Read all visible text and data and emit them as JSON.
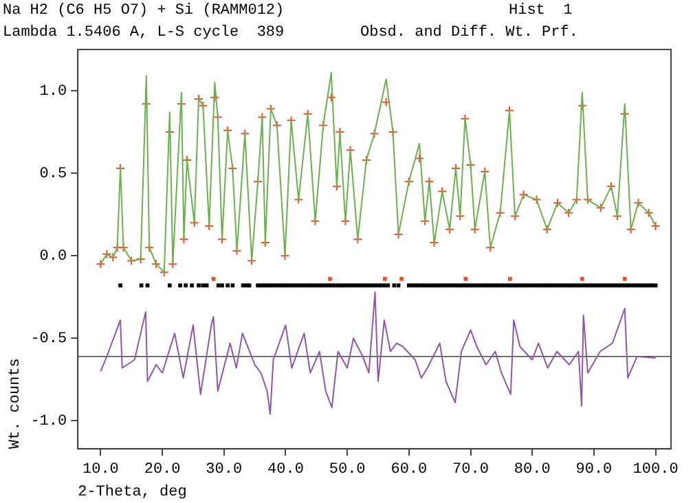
{
  "chart_data": {
    "type": "scatter",
    "title": "Na H2 (C6 H5 O7) + Si (RAMM012)",
    "annotations": [
      "Hist  1",
      "Lambda 1.5406 A, L-S cycle  389",
      "Obsd. and Diff. Wt. Prf."
    ],
    "xlabel": "2-Theta, deg",
    "ylabel": "Wt. counts",
    "xlim": [
      6.3,
      102.5
    ],
    "ylim": [
      -1.17,
      1.25
    ],
    "xticks": [
      {
        "value": 10,
        "label": "10.0"
      },
      {
        "value": 20,
        "label": "20.0"
      },
      {
        "value": 30,
        "label": "30.0"
      },
      {
        "value": 40,
        "label": "40.0"
      },
      {
        "value": 50,
        "label": "50.0"
      },
      {
        "value": 60,
        "label": "60.0"
      },
      {
        "value": 70,
        "label": "70.0"
      },
      {
        "value": 80,
        "label": "80.0"
      },
      {
        "value": 90,
        "label": "90.0"
      },
      {
        "value": 100,
        "label": "100.0"
      }
    ],
    "yticks": [
      {
        "value": -1,
        "label": "-1.0"
      },
      -0.5,
      {
        "value": 0,
        "label": "0.0"
      },
      0.5,
      {
        "value": 1,
        "label": "1.0"
      }
    ],
    "grid": false,
    "legend": false,
    "ref_lines": [
      {
        "axis": "y",
        "value": -0.61,
        "color": "#444444"
      }
    ],
    "series": [
      {
        "type": "line",
        "color": "#6ab04c",
        "marker": "none",
        "x": [
          10,
          11,
          12,
          12.7,
          13.2,
          13.7,
          15,
          16.5,
          17.4,
          17.9,
          19,
          20.3,
          21.2,
          21.7,
          23.1,
          23.5,
          24,
          25.2,
          25.9,
          26.6,
          27.6,
          28.5,
          29,
          29.7,
          30.6,
          31.4,
          32.1,
          33.4,
          34.5,
          35.5,
          36.2,
          36.7,
          37.6,
          38.6,
          39.9,
          40.9,
          42.1,
          43.6,
          44.8,
          46.1,
          47.4,
          48.3,
          48.8,
          49.7,
          50.5,
          51.7,
          53.1,
          54.4,
          56.3,
          57.4,
          58.3,
          60,
          61.7,
          62.6,
          63.3,
          64.1,
          65.4,
          66.6,
          67.6,
          68.3,
          69.1,
          70,
          70.7,
          72.3,
          73.2,
          74.8,
          76.3,
          77.2,
          78.6,
          80.7,
          82.4,
          84.1,
          85.9,
          87.2,
          88.1,
          89,
          91.1,
          92.8,
          93.8,
          95,
          96,
          97.2,
          98.9,
          100
        ],
        "values": [
          -0.05,
          0.01,
          -0.01,
          0.05,
          0.53,
          0.05,
          -0.03,
          -0.02,
          1.09,
          0.05,
          -0.05,
          -0.1,
          0.87,
          -0.05,
          0.99,
          0.1,
          0.58,
          0.2,
          0.95,
          0.91,
          0.18,
          1.05,
          0.84,
          0.1,
          0.76,
          0.53,
          0.03,
          0.74,
          -0.03,
          0.45,
          0.84,
          0.08,
          0.89,
          0.79,
          0,
          0.82,
          0.34,
          0.86,
          0.21,
          0.79,
          1.11,
          0.42,
          0.75,
          0.21,
          0.64,
          0.1,
          0.58,
          0.74,
          1.07,
          0.75,
          0.13,
          0.45,
          0.68,
          0.21,
          0.45,
          0.08,
          0.39,
          0.16,
          0.53,
          0.24,
          0.83,
          0.55,
          0.16,
          0.51,
          0.05,
          0.26,
          0.88,
          0.24,
          0.37,
          0.34,
          0.16,
          0.32,
          0.26,
          0.34,
          0.99,
          0.34,
          0.29,
          0.42,
          0.24,
          0.92,
          0.16,
          0.32,
          0.26,
          0.18
        ]
      },
      {
        "type": "scatter",
        "color": "#e8502a",
        "marker": "cross",
        "x": [
          10,
          11,
          12,
          12.7,
          13.2,
          13.7,
          15,
          16.5,
          17.4,
          17.9,
          19,
          20.3,
          21.2,
          21.7,
          23.1,
          23.5,
          24,
          25.2,
          25.9,
          26.6,
          27.6,
          28.5,
          29,
          29.7,
          30.6,
          31.4,
          32.1,
          33.4,
          34.5,
          35.5,
          36.2,
          36.7,
          37.6,
          38.6,
          39.9,
          40.9,
          42.1,
          43.6,
          44.8,
          46.1,
          47.4,
          48.3,
          48.8,
          49.7,
          50.5,
          51.7,
          53.1,
          54.4,
          56.3,
          57.4,
          58.3,
          60,
          61.7,
          62.6,
          63.3,
          64.1,
          65.4,
          66.6,
          67.6,
          68.3,
          69.1,
          70,
          70.7,
          72.3,
          73.2,
          74.8,
          76.3,
          77.2,
          78.6,
          80.7,
          82.4,
          84.1,
          85.9,
          87.2,
          88.1,
          89,
          91.1,
          92.8,
          93.8,
          95,
          96,
          97.2,
          98.9,
          100
        ],
        "values": [
          -0.05,
          0.01,
          -0.01,
          0.05,
          0.53,
          0.05,
          -0.03,
          -0.02,
          0.92,
          0.05,
          -0.05,
          -0.1,
          0.75,
          -0.05,
          0.92,
          0.1,
          0.58,
          0.2,
          0.95,
          0.91,
          0.18,
          0.96,
          0.84,
          0.1,
          0.76,
          0.53,
          0.03,
          0.74,
          -0.03,
          0.45,
          0.84,
          0.08,
          0.89,
          0.79,
          0,
          0.82,
          0.34,
          0.86,
          0.21,
          0.79,
          0.96,
          0.42,
          0.75,
          0.21,
          0.64,
          0.1,
          0.58,
          0.74,
          0.93,
          0.75,
          0.13,
          0.45,
          0.59,
          0.21,
          0.45,
          0.08,
          0.39,
          0.16,
          0.53,
          0.24,
          0.83,
          0.55,
          0.16,
          0.51,
          0.05,
          0.26,
          0.88,
          0.24,
          0.37,
          0.34,
          0.16,
          0.32,
          0.26,
          0.34,
          0.91,
          0.34,
          0.29,
          0.42,
          0.24,
          0.86,
          0.16,
          0.32,
          0.26,
          0.18
        ]
      },
      {
        "type": "scatter",
        "color": "#000000",
        "marker": "square",
        "x": [
          13.2,
          16.6,
          17.6,
          21.2,
          22.9,
          23.8,
          24.8,
          25.9,
          26.6,
          27.2,
          29.1,
          29.7,
          30.6,
          31.4,
          33.1,
          33.7,
          34.1,
          35.5,
          36,
          36.5,
          37,
          37.5,
          38,
          38.5,
          39,
          39.5,
          40,
          40.5,
          41,
          41.5,
          42,
          42.5,
          43,
          43.5,
          44,
          44.5,
          45,
          45.5,
          46,
          46.5,
          47,
          47.5,
          48,
          48.5,
          49,
          49.5,
          50,
          50.5,
          51,
          51.5,
          52,
          52.5,
          53,
          53.5,
          54,
          54.5,
          55,
          55.5,
          56,
          56.6,
          57.6,
          58.3,
          60,
          60.5,
          61,
          61.5,
          62,
          62.5,
          63,
          63.5,
          64,
          64.5,
          65,
          65.5,
          66,
          66.5,
          67,
          67.5,
          68,
          68.5,
          69,
          69.5,
          70,
          70.5,
          71,
          71.5,
          72,
          72.5,
          73,
          73.5,
          74,
          74.5,
          75,
          75.5,
          76,
          76.5,
          77,
          77.5,
          78,
          78.5,
          79,
          79.5,
          80,
          80.5,
          81,
          81.5,
          82,
          82.5,
          83,
          83.5,
          84,
          84.5,
          85,
          85.5,
          86,
          86.5,
          87,
          87.5,
          88,
          88.5,
          89,
          89.5,
          90,
          90.5,
          91,
          91.5,
          92,
          92.5,
          93,
          93.5,
          94,
          94.5,
          95,
          95.5,
          96,
          96.5,
          97,
          97.5,
          98,
          98.5,
          99,
          99.5,
          100
        ],
        "values": [
          -0.18,
          -0.18,
          -0.18,
          -0.18,
          -0.18,
          -0.18,
          -0.18,
          -0.18,
          -0.18,
          -0.18,
          -0.18,
          -0.18,
          -0.18,
          -0.18,
          -0.18,
          -0.18,
          -0.18,
          -0.18,
          -0.18,
          -0.18,
          -0.18,
          -0.18,
          -0.18,
          -0.18,
          -0.18,
          -0.18,
          -0.18,
          -0.18,
          -0.18,
          -0.18,
          -0.18,
          -0.18,
          -0.18,
          -0.18,
          -0.18,
          -0.18,
          -0.18,
          -0.18,
          -0.18,
          -0.18,
          -0.18,
          -0.18,
          -0.18,
          -0.18,
          -0.18,
          -0.18,
          -0.18,
          -0.18,
          -0.18,
          -0.18,
          -0.18,
          -0.18,
          -0.18,
          -0.18,
          -0.18,
          -0.18,
          -0.18,
          -0.18,
          -0.18,
          -0.18,
          -0.18,
          -0.18,
          -0.18,
          -0.18,
          -0.18,
          -0.18,
          -0.18,
          -0.18,
          -0.18,
          -0.18,
          -0.18,
          -0.18,
          -0.18,
          -0.18,
          -0.18,
          -0.18,
          -0.18,
          -0.18,
          -0.18,
          -0.18,
          -0.18,
          -0.18,
          -0.18,
          -0.18,
          -0.18,
          -0.18,
          -0.18,
          -0.18,
          -0.18,
          -0.18,
          -0.18,
          -0.18,
          -0.18,
          -0.18,
          -0.18,
          -0.18,
          -0.18,
          -0.18,
          -0.18,
          -0.18,
          -0.18,
          -0.18,
          -0.18,
          -0.18,
          -0.18,
          -0.18,
          -0.18,
          -0.18,
          -0.18,
          -0.18,
          -0.18,
          -0.18,
          -0.18,
          -0.18,
          -0.18,
          -0.18,
          -0.18,
          -0.18,
          -0.18,
          -0.18,
          -0.18,
          -0.18,
          -0.18,
          -0.18,
          -0.18,
          -0.18,
          -0.18,
          -0.18,
          -0.18,
          -0.18,
          -0.18,
          -0.18,
          -0.18,
          -0.18,
          -0.18,
          -0.18,
          -0.18,
          -0.18,
          -0.18,
          -0.18,
          -0.18,
          -0.18,
          -0.18
        ]
      },
      {
        "type": "scatter",
        "color": "#e8502a",
        "marker": "square",
        "x": [
          28.3,
          47.2,
          56.1,
          58.8,
          69.2,
          76.4,
          88.1,
          95
        ],
        "values": [
          -0.14,
          -0.14,
          -0.14,
          -0.14,
          -0.14,
          -0.14,
          -0.14,
          -0.14
        ]
      },
      {
        "type": "line",
        "color": "#8e55a8",
        "marker": "none",
        "x": [
          10,
          11,
          13.2,
          13.5,
          15.5,
          17.3,
          17.6,
          19,
          20,
          22,
          23.4,
          25,
          26.2,
          28,
          28.3,
          29,
          31,
          32,
          33,
          35,
          36,
          37,
          37.5,
          38,
          40,
          41,
          43,
          44,
          45.5,
          46.5,
          47.5,
          48.5,
          50,
          51,
          52.5,
          53.5,
          54.5,
          55,
          56,
          57,
          58,
          59,
          61,
          62,
          63,
          65,
          66,
          67.5,
          68.5,
          70,
          71,
          72.5,
          74,
          75,
          76.5,
          77,
          78,
          80,
          81,
          82.5,
          84,
          86,
          87.5,
          88,
          88.3,
          89,
          91,
          93,
          95,
          95.5,
          97,
          100
        ],
        "values": [
          -0.7,
          -0.61,
          -0.39,
          -0.68,
          -0.63,
          -0.34,
          -0.76,
          -0.66,
          -0.71,
          -0.47,
          -0.74,
          -0.42,
          -0.84,
          -0.41,
          -0.37,
          -0.82,
          -0.53,
          -0.68,
          -0.47,
          -0.66,
          -0.71,
          -0.82,
          -0.96,
          -0.63,
          -0.42,
          -0.68,
          -0.47,
          -0.71,
          -0.58,
          -0.82,
          -0.92,
          -0.58,
          -0.68,
          -0.5,
          -0.61,
          -0.71,
          -0.22,
          -0.76,
          -0.39,
          -0.58,
          -0.53,
          -0.55,
          -0.63,
          -0.74,
          -0.68,
          -0.53,
          -0.76,
          -0.89,
          -0.58,
          -0.45,
          -0.55,
          -0.66,
          -0.58,
          -0.71,
          -0.84,
          -0.39,
          -0.55,
          -0.63,
          -0.53,
          -0.68,
          -0.58,
          -0.66,
          -0.58,
          -0.91,
          -0.36,
          -0.71,
          -0.58,
          -0.53,
          -0.32,
          -0.74,
          -0.61,
          -0.62
        ]
      }
    ]
  }
}
